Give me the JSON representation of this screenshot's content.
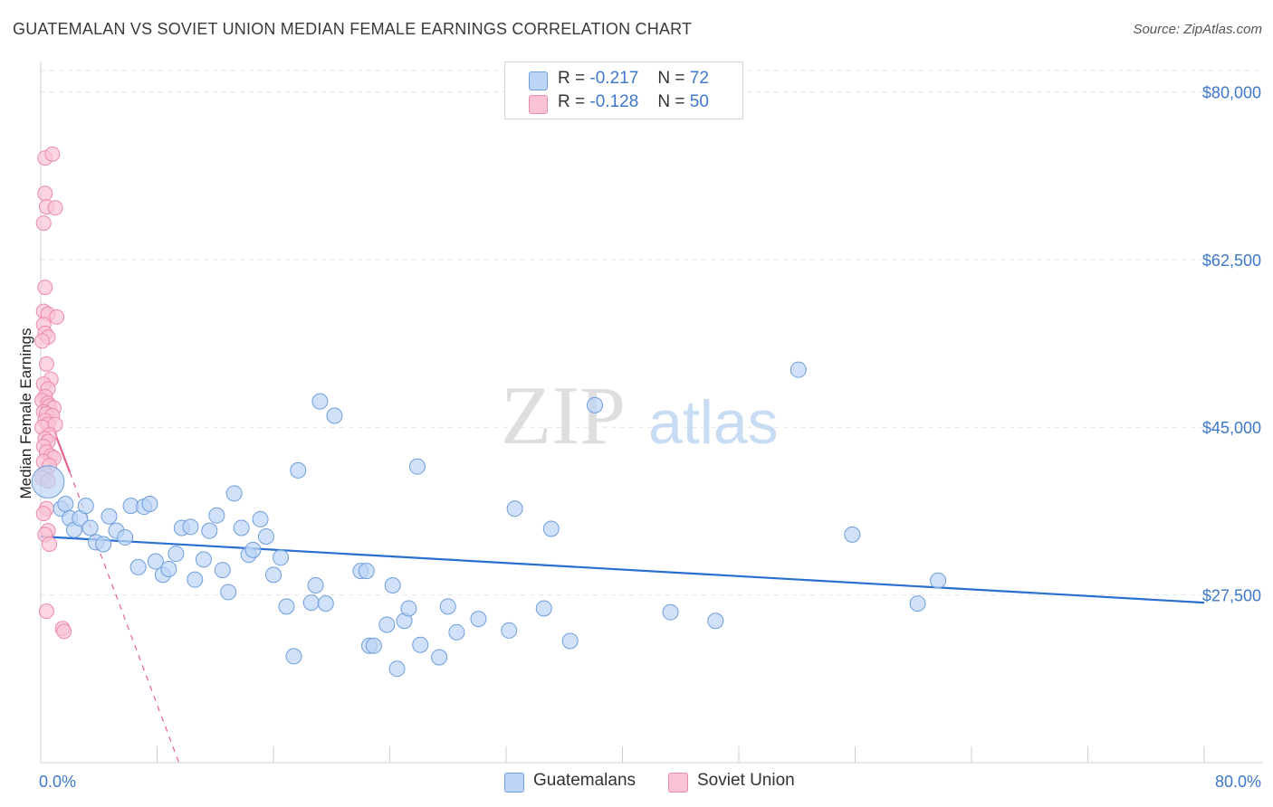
{
  "title": "GUATEMALAN VS SOVIET UNION MEDIAN FEMALE EARNINGS CORRELATION CHART",
  "source": "Source: ZipAtlas.com",
  "watermark": {
    "zip": "ZIP",
    "atlas": "atlas"
  },
  "legend": {
    "rows": [
      {
        "r_label": "R =",
        "r_value": "-0.217",
        "n_label": "N =",
        "n_value": "72"
      },
      {
        "r_label": "R =",
        "r_value": "-0.128",
        "n_label": "N =",
        "n_value": "50"
      }
    ]
  },
  "bottom_legend": {
    "guatemalans": "Guatemalans",
    "soviet_union": "Soviet Union"
  },
  "colors": {
    "blue_fill": "#bcd4f6",
    "blue_stroke": "#6e9edd",
    "blue_line": "#2a6fd1",
    "pink_fill": "#f9c3d4",
    "pink_stroke": "#ec8aa9",
    "pink_line": "#e3628c",
    "grid": "#e3e3e3",
    "tick_text": "#3d78c9"
  },
  "chart_data": {
    "type": "scatter",
    "title": "GUATEMALAN VS SOVIET UNION MEDIAN FEMALE EARNINGS CORRELATION CHART",
    "xlabel": "",
    "ylabel": "Median Female Earnings",
    "xlim": [
      0,
      80
    ],
    "ylim": [
      10000,
      82500
    ],
    "x_tick_labels": [
      "0.0%",
      "80.0%"
    ],
    "y_ticks": [
      27500,
      45000,
      62500,
      80000
    ],
    "y_tick_labels": [
      "$27,500",
      "$45,000",
      "$62,500",
      "$80,000"
    ],
    "series": [
      {
        "name": "Guatemalans",
        "r": -0.217,
        "n": 72,
        "trend": {
          "x": [
            0,
            80
          ],
          "y": [
            33600,
            26700
          ]
        },
        "points": [
          [
            0.5,
            39300,
            2.1
          ],
          [
            1.4,
            36500,
            1
          ],
          [
            1.7,
            37000,
            1
          ],
          [
            2.0,
            35500,
            1
          ],
          [
            2.3,
            34300,
            1
          ],
          [
            2.7,
            35500,
            1
          ],
          [
            3.1,
            36800,
            1
          ],
          [
            3.4,
            34500,
            1
          ],
          [
            3.8,
            33000,
            1
          ],
          [
            4.3,
            32800,
            1
          ],
          [
            4.7,
            35700,
            1
          ],
          [
            5.2,
            34200,
            1
          ],
          [
            5.8,
            33500,
            1
          ],
          [
            6.2,
            36800,
            1
          ],
          [
            6.7,
            30400,
            1
          ],
          [
            7.1,
            36700,
            1
          ],
          [
            7.5,
            37000,
            1
          ],
          [
            7.9,
            31000,
            1
          ],
          [
            8.4,
            29600,
            1
          ],
          [
            8.8,
            30200,
            1
          ],
          [
            9.3,
            31800,
            1
          ],
          [
            9.7,
            34500,
            1
          ],
          [
            10.3,
            34600,
            1
          ],
          [
            10.6,
            29100,
            1
          ],
          [
            11.2,
            31200,
            1
          ],
          [
            11.6,
            34200,
            1
          ],
          [
            12.1,
            35800,
            1
          ],
          [
            12.5,
            30100,
            1
          ],
          [
            12.9,
            27800,
            1
          ],
          [
            13.3,
            38100,
            1
          ],
          [
            13.8,
            34500,
            1
          ],
          [
            14.3,
            31700,
            1
          ],
          [
            14.6,
            32200,
            1
          ],
          [
            15.1,
            35400,
            1
          ],
          [
            15.5,
            33600,
            1
          ],
          [
            16.0,
            29600,
            1
          ],
          [
            16.5,
            31400,
            1
          ],
          [
            16.9,
            26300,
            1
          ],
          [
            17.4,
            21100,
            1
          ],
          [
            17.7,
            40500,
            1
          ],
          [
            18.6,
            26700,
            1
          ],
          [
            18.9,
            28500,
            1
          ],
          [
            19.2,
            47700,
            1
          ],
          [
            19.6,
            26600,
            1
          ],
          [
            20.2,
            46200,
            1
          ],
          [
            22.0,
            30000,
            1
          ],
          [
            22.4,
            30000,
            1
          ],
          [
            22.6,
            22200,
            1
          ],
          [
            22.9,
            22200,
            1
          ],
          [
            23.8,
            24400,
            1
          ],
          [
            24.2,
            28500,
            1
          ],
          [
            24.5,
            19800,
            1
          ],
          [
            25.0,
            24800,
            1
          ],
          [
            25.3,
            26100,
            1
          ],
          [
            25.9,
            40900,
            1
          ],
          [
            26.1,
            22300,
            1
          ],
          [
            27.4,
            21000,
            1
          ],
          [
            28.0,
            26300,
            1
          ],
          [
            28.6,
            23600,
            1
          ],
          [
            30.1,
            25000,
            1
          ],
          [
            32.2,
            23800,
            1
          ],
          [
            32.6,
            36500,
            1
          ],
          [
            34.6,
            26100,
            1
          ],
          [
            35.1,
            34400,
            1
          ],
          [
            36.4,
            22700,
            1
          ],
          [
            38.1,
            47300,
            1
          ],
          [
            43.3,
            25700,
            1
          ],
          [
            46.4,
            24800,
            1
          ],
          [
            52.1,
            51000,
            1
          ],
          [
            55.8,
            33800,
            1
          ],
          [
            60.3,
            26600,
            1
          ],
          [
            61.7,
            29000,
            1
          ]
        ]
      },
      {
        "name": "Soviet Union",
        "r": -0.128,
        "n": 50,
        "trend": {
          "x": [
            0,
            2.0
          ],
          "y": [
            48300,
            40300
          ]
        },
        "trend_dashed": {
          "x": [
            2.0,
            9.5
          ],
          "y": [
            40300,
            10000
          ]
        },
        "points": [
          [
            0.3,
            73100
          ],
          [
            0.8,
            73500
          ],
          [
            0.3,
            69400
          ],
          [
            0.4,
            68000
          ],
          [
            1.0,
            67900
          ],
          [
            0.2,
            66300
          ],
          [
            0.3,
            59600
          ],
          [
            0.2,
            57100
          ],
          [
            0.5,
            56800
          ],
          [
            1.1,
            56500
          ],
          [
            0.2,
            55700
          ],
          [
            0.3,
            54800
          ],
          [
            0.5,
            54400
          ],
          [
            0.1,
            54000
          ],
          [
            0.4,
            51600
          ],
          [
            0.7,
            50000
          ],
          [
            0.2,
            49500
          ],
          [
            0.5,
            49000
          ],
          [
            0.3,
            48200
          ],
          [
            0.1,
            47800
          ],
          [
            0.5,
            47500
          ],
          [
            0.6,
            47200
          ],
          [
            0.9,
            47000
          ],
          [
            0.2,
            46600
          ],
          [
            0.4,
            46400
          ],
          [
            0.8,
            46200
          ],
          [
            0.3,
            45700
          ],
          [
            0.5,
            45300
          ],
          [
            0.1,
            45000
          ],
          [
            1.0,
            45300
          ],
          [
            0.6,
            44200
          ],
          [
            0.3,
            43800
          ],
          [
            0.5,
            43500
          ],
          [
            0.2,
            43000
          ],
          [
            0.4,
            42400
          ],
          [
            0.7,
            42000
          ],
          [
            0.9,
            41800
          ],
          [
            0.2,
            41400
          ],
          [
            0.6,
            41000
          ],
          [
            0.3,
            40200
          ],
          [
            0.1,
            39700
          ],
          [
            0.5,
            39400
          ],
          [
            0.4,
            36500
          ],
          [
            0.2,
            36000
          ],
          [
            0.5,
            34200
          ],
          [
            0.3,
            33800
          ],
          [
            0.6,
            32800
          ],
          [
            0.4,
            25800
          ],
          [
            1.5,
            24000
          ],
          [
            1.6,
            23700
          ]
        ]
      }
    ]
  }
}
